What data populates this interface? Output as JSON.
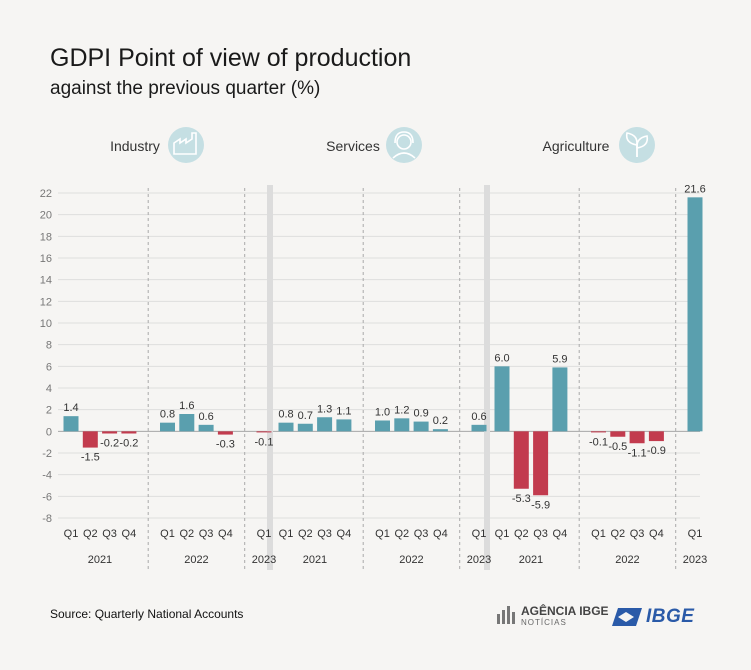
{
  "header": {
    "title": "GDPI Point of view of production",
    "subtitle": "against the previous quarter (%)"
  },
  "footer": {
    "source": "Source: Quarterly National Accounts",
    "agencia_logo": "AGÊNCIA IBGE",
    "agencia_logo_sub": "NOTÍCIAS",
    "ibge_logo": "IBGE"
  },
  "colors": {
    "positive": "#5a9fae",
    "negative": "#c23b4e",
    "panel_icon": "#c5dfe3",
    "separator": "#dcdcdc"
  },
  "chart_data": {
    "type": "bar",
    "ylim": [
      -8,
      22
    ],
    "yticks": [
      -8,
      -6,
      -4,
      -2,
      0,
      2,
      4,
      6,
      8,
      10,
      12,
      14,
      16,
      18,
      20,
      22
    ],
    "grid": true,
    "panels": [
      {
        "name": "Industry",
        "icon": "factory-icon",
        "groups": [
          {
            "year": "2021",
            "quarters": [
              "Q1",
              "Q2",
              "Q3",
              "Q4"
            ],
            "values": [
              1.4,
              -1.5,
              -0.2,
              -0.2
            ],
            "labels": [
              "1.4",
              "-1.5",
              "-0.2",
              "-0.2"
            ]
          },
          {
            "year": "2022",
            "quarters": [
              "Q1",
              "Q2",
              "Q3",
              "Q4"
            ],
            "values": [
              0.8,
              1.6,
              0.6,
              -0.3
            ],
            "labels": [
              "0.8",
              "1.6",
              "0.6",
              "-0.3"
            ]
          },
          {
            "year": "2023",
            "quarters": [
              "Q1"
            ],
            "values": [
              -0.1
            ],
            "labels": [
              "-0.1"
            ]
          }
        ]
      },
      {
        "name": "Services",
        "icon": "headset-agent-icon",
        "groups": [
          {
            "year": "2021",
            "quarters": [
              "Q1",
              "Q2",
              "Q3",
              "Q4"
            ],
            "values": [
              0.8,
              0.7,
              1.3,
              1.1
            ],
            "labels": [
              "0.8",
              "0.7",
              "1.3",
              "1.1"
            ]
          },
          {
            "year": "2022",
            "quarters": [
              "Q1",
              "Q2",
              "Q3",
              "Q4"
            ],
            "values": [
              1.0,
              1.2,
              0.9,
              0.2
            ],
            "labels": [
              "1.0",
              "1.2",
              "0.9",
              "0.2"
            ]
          },
          {
            "year": "2023",
            "quarters": [
              "Q1"
            ],
            "values": [
              0.6
            ],
            "labels": [
              "0.6"
            ]
          }
        ]
      },
      {
        "name": "Agriculture",
        "icon": "plant-icon",
        "groups": [
          {
            "year": "2021",
            "quarters": [
              "Q1",
              "Q2",
              "Q3",
              "Q4"
            ],
            "values": [
              6.0,
              -5.3,
              -5.9,
              5.9
            ],
            "labels": [
              "6.0",
              "-5.3",
              "-5.9",
              "5.9"
            ]
          },
          {
            "year": "2022",
            "quarters": [
              "Q1",
              "Q2",
              "Q3",
              "Q4"
            ],
            "values": [
              -0.1,
              -0.5,
              -1.1,
              -0.9
            ],
            "labels": [
              "-0.1",
              "-0.5",
              "-1.1",
              "-0.9"
            ]
          },
          {
            "year": "2023",
            "quarters": [
              "Q1"
            ],
            "values": [
              21.6
            ],
            "labels": [
              "21.6"
            ]
          }
        ]
      }
    ]
  }
}
